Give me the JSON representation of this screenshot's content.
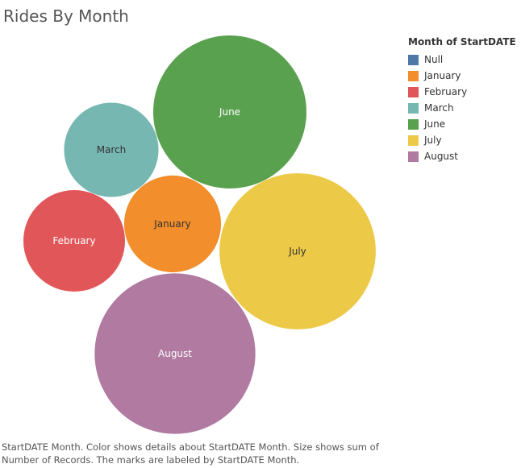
{
  "title": "Rides By Month",
  "legend": {
    "title": "Month of StartDATE",
    "items": [
      {
        "label": "Null",
        "color": "#4e79a7"
      },
      {
        "label": "January",
        "color": "#f28e2b"
      },
      {
        "label": "February",
        "color": "#e15759"
      },
      {
        "label": "March",
        "color": "#76b7b2"
      },
      {
        "label": "June",
        "color": "#59a14f"
      },
      {
        "label": "July",
        "color": "#edc948"
      },
      {
        "label": "August",
        "color": "#b07aa1"
      }
    ]
  },
  "caption": "StartDATE Month.  Color shows details about StartDATE Month.  Size shows sum of Number of Records.  The marks are labeled by StartDATE Month.",
  "chart_data": {
    "type": "bubble",
    "title": "Rides By Month",
    "size_measure": "Number of Records",
    "series": [
      {
        "name": "June",
        "color": "#59a14f",
        "text_color": "#ffffff",
        "relative_size": 1.0
      },
      {
        "name": "July",
        "color": "#edc948",
        "text_color": "#333333",
        "relative_size": 1.04
      },
      {
        "name": "August",
        "color": "#b07aa1",
        "text_color": "#ffffff",
        "relative_size": 1.1
      },
      {
        "name": "March",
        "color": "#76b7b2",
        "text_color": "#333333",
        "relative_size": 0.38
      },
      {
        "name": "February",
        "color": "#e15759",
        "text_color": "#ffffff",
        "relative_size": 0.44
      },
      {
        "name": "January",
        "color": "#f28e2b",
        "text_color": "#333333",
        "relative_size": 0.4
      }
    ]
  }
}
